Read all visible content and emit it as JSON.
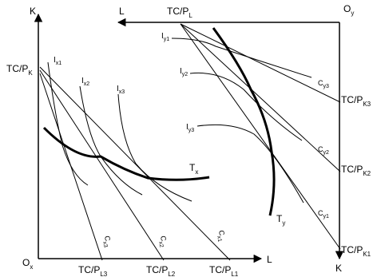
{
  "left_panel": {
    "axis_y_label": "K",
    "axis_x_label": "L",
    "origin_label": "O",
    "origin_sub": "x",
    "intercept_label": "TC/P",
    "intercept_sub": "K",
    "isoquants": [
      {
        "base": "I",
        "sub": "x1"
      },
      {
        "base": "I",
        "sub": "x2"
      },
      {
        "base": "I",
        "sub": "x3"
      }
    ],
    "cost_lines": [
      {
        "base": "C",
        "sub": "x3"
      },
      {
        "base": "C",
        "sub": "x2"
      },
      {
        "base": "C",
        "sub": "x1"
      }
    ],
    "x_intercepts": [
      {
        "base": "TC/P",
        "sub": "L3"
      },
      {
        "base": "TC/P",
        "sub": "L2"
      },
      {
        "base": "TC/P",
        "sub": "L1"
      }
    ],
    "expansion_path": {
      "base": "T",
      "sub": "x"
    }
  },
  "right_panel": {
    "axis_x_label": "L",
    "axis_y_label": "K",
    "origin_label": "O",
    "origin_sub": "y",
    "intercept_label": "TC/P",
    "intercept_sub": "L",
    "isoquants": [
      {
        "base": "I",
        "sub": "y1"
      },
      {
        "base": "I",
        "sub": "y2"
      },
      {
        "base": "I",
        "sub": "y3"
      }
    ],
    "cost_lines": [
      {
        "base": "C",
        "sub": "y3"
      },
      {
        "base": "C",
        "sub": "y2"
      },
      {
        "base": "C",
        "sub": "y1"
      }
    ],
    "y_intercepts": [
      {
        "base": "TC/P",
        "sub": "K3"
      },
      {
        "base": "TC/P",
        "sub": "K2"
      },
      {
        "base": "TC/P",
        "sub": "K1"
      }
    ],
    "expansion_path": {
      "base": "T",
      "sub": "y"
    }
  }
}
